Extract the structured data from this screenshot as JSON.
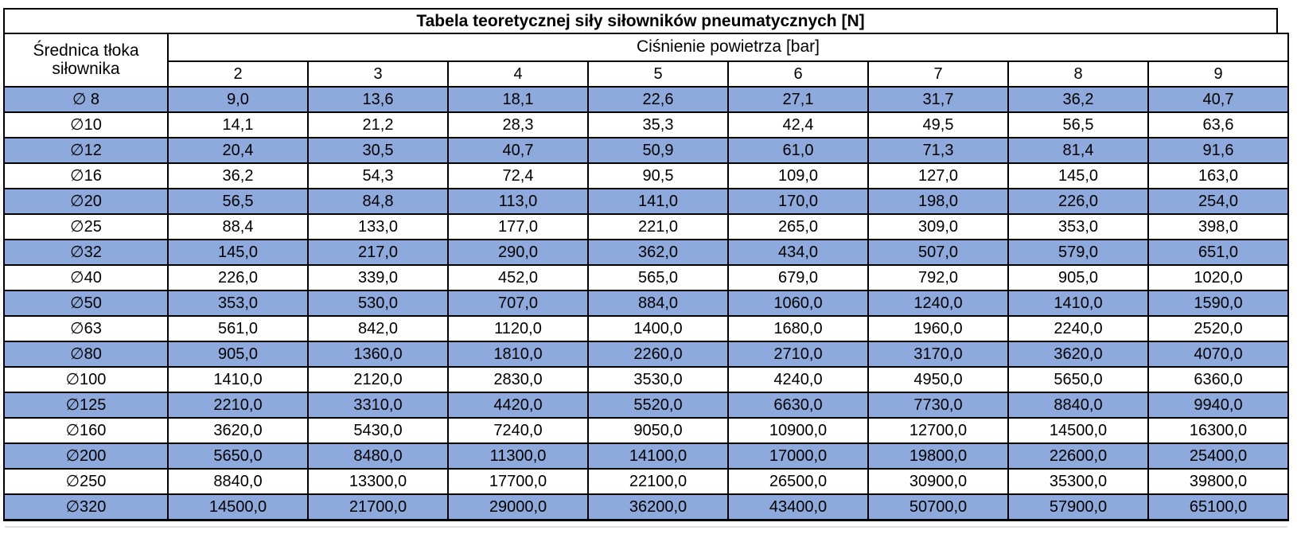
{
  "chart_data": {
    "type": "table",
    "title": "Tabela teoretycznej siły siłowników pneumatycznych [N]",
    "corner_header": {
      "line1": "Średnica tłoka",
      "line2": "siłownika"
    },
    "group_header": "Ciśnienie powietrza [bar]",
    "pressure_columns": [
      "2",
      "3",
      "4",
      "5",
      "6",
      "7",
      "8",
      "9"
    ],
    "unit": "N",
    "rows": [
      {
        "diameter": "∅ 8",
        "highlighted": true,
        "forces": [
          "9,0",
          "13,6",
          "18,1",
          "22,6",
          "27,1",
          "31,7",
          "36,2",
          "40,7"
        ]
      },
      {
        "diameter": "∅10",
        "highlighted": false,
        "forces": [
          "14,1",
          "21,2",
          "28,3",
          "35,3",
          "42,4",
          "49,5",
          "56,5",
          "63,6"
        ]
      },
      {
        "diameter": "∅12",
        "highlighted": true,
        "forces": [
          "20,4",
          "30,5",
          "40,7",
          "50,9",
          "61,0",
          "71,3",
          "81,4",
          "91,6"
        ]
      },
      {
        "diameter": "∅16",
        "highlighted": false,
        "forces": [
          "36,2",
          "54,3",
          "72,4",
          "90,5",
          "109,0",
          "127,0",
          "145,0",
          "163,0"
        ]
      },
      {
        "diameter": "∅20",
        "highlighted": true,
        "forces": [
          "56,5",
          "84,8",
          "113,0",
          "141,0",
          "170,0",
          "198,0",
          "226,0",
          "254,0"
        ]
      },
      {
        "diameter": "∅25",
        "highlighted": false,
        "forces": [
          "88,4",
          "133,0",
          "177,0",
          "221,0",
          "265,0",
          "309,0",
          "353,0",
          "398,0"
        ]
      },
      {
        "diameter": "∅32",
        "highlighted": true,
        "forces": [
          "145,0",
          "217,0",
          "290,0",
          "362,0",
          "434,0",
          "507,0",
          "579,0",
          "651,0"
        ]
      },
      {
        "diameter": "∅40",
        "highlighted": false,
        "forces": [
          "226,0",
          "339,0",
          "452,0",
          "565,0",
          "679,0",
          "792,0",
          "905,0",
          "1020,0"
        ]
      },
      {
        "diameter": "∅50",
        "highlighted": true,
        "forces": [
          "353,0",
          "530,0",
          "707,0",
          "884,0",
          "1060,0",
          "1240,0",
          "1410,0",
          "1590,0"
        ]
      },
      {
        "diameter": "∅63",
        "highlighted": false,
        "forces": [
          "561,0",
          "842,0",
          "1120,0",
          "1400,0",
          "1680,0",
          "1960,0",
          "2240,0",
          "2520,0"
        ]
      },
      {
        "diameter": "∅80",
        "highlighted": true,
        "forces": [
          "905,0",
          "1360,0",
          "1810,0",
          "2260,0",
          "2710,0",
          "3170,0",
          "3620,0",
          "4070,0"
        ]
      },
      {
        "diameter": "∅100",
        "highlighted": false,
        "forces": [
          "1410,0",
          "2120,0",
          "2830,0",
          "3530,0",
          "4240,0",
          "4950,0",
          "5650,0",
          "6360,0"
        ]
      },
      {
        "diameter": "∅125",
        "highlighted": true,
        "forces": [
          "2210,0",
          "3310,0",
          "4420,0",
          "5520,0",
          "6630,0",
          "7730,0",
          "8840,0",
          "9940,0"
        ]
      },
      {
        "diameter": "∅160",
        "highlighted": false,
        "forces": [
          "3620,0",
          "5430,0",
          "7240,0",
          "9050,0",
          "10900,0",
          "12700,0",
          "14500,0",
          "16300,0"
        ]
      },
      {
        "diameter": "∅200",
        "highlighted": true,
        "forces": [
          "5650,0",
          "8480,0",
          "11300,0",
          "14100,0",
          "17000,0",
          "19800,0",
          "22600,0",
          "25400,0"
        ]
      },
      {
        "diameter": "∅250",
        "highlighted": false,
        "forces": [
          "8840,0",
          "13300,0",
          "17700,0",
          "22100,0",
          "26500,0",
          "30900,0",
          "35300,0",
          "39800,0"
        ]
      },
      {
        "diameter": "∅320",
        "highlighted": true,
        "forces": [
          "14500,0",
          "21700,0",
          "29000,0",
          "36200,0",
          "43400,0",
          "50700,0",
          "57900,0",
          "65100,0"
        ]
      }
    ]
  },
  "colors": {
    "highlight_row": "#8EA9DB",
    "plain_row": "#FFFFFF",
    "border": "#000000",
    "text": "#000000"
  }
}
